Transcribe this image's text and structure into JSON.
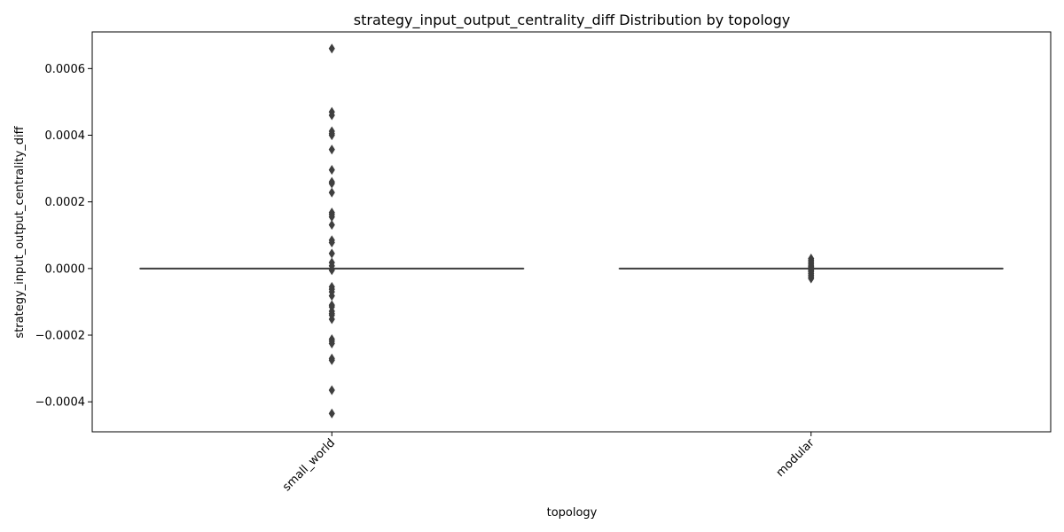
{
  "chart_data": {
    "type": "box",
    "title": "strategy_input_output_centrality_diff Distribution by topology",
    "xlabel": "topology",
    "ylabel": "strategy_input_output_centrality_diff",
    "categories": [
      "small_world",
      "modular"
    ],
    "ylim": [
      -0.00049,
      0.00071
    ],
    "yticks": [
      -0.0004,
      -0.0002,
      0.0,
      0.0002,
      0.0004,
      0.0006
    ],
    "ytick_labels": [
      "−0.0004",
      "−0.0002",
      "0.0000",
      "0.0002",
      "0.0004",
      "0.0006"
    ],
    "grid": false,
    "colors": {
      "box": "#3f3f3f",
      "axes": "#000000"
    },
    "series": [
      {
        "category": "small_world",
        "q1": 0.0,
        "median": 0.0,
        "q3": 0.0,
        "whisker_low": 0.0,
        "whisker_high": 0.0,
        "outliers": [
          0.00066,
          0.00047,
          0.00046,
          0.000412,
          0.000405,
          0.0004,
          0.000357,
          0.000296,
          0.00026,
          0.000255,
          0.000228,
          0.000168,
          0.000162,
          0.000155,
          0.000131,
          8.5e-05,
          7.8e-05,
          4.5e-05,
          1.8e-05,
          8e-06,
          -5e-06,
          -5.5e-05,
          -6.2e-05,
          -7e-05,
          -8.2e-05,
          -0.00011,
          -0.000115,
          -0.000128,
          -0.000135,
          -0.00014,
          -0.000152,
          -0.000212,
          -0.000218,
          -0.000225,
          -0.00027,
          -0.000275,
          -0.000365,
          -0.000435
        ]
      },
      {
        "category": "modular",
        "q1": 0.0,
        "median": 0.0,
        "q3": 0.0,
        "whisker_low": 0.0,
        "whisker_high": 0.0,
        "outliers": [
          3e-05,
          2.5e-05,
          2e-05,
          1.5e-05,
          1e-05,
          6e-06,
          3e-06,
          -3e-06,
          -6e-06,
          -1e-05,
          -1.5e-05,
          -2e-05,
          -2.5e-05,
          -3e-05
        ]
      }
    ]
  }
}
